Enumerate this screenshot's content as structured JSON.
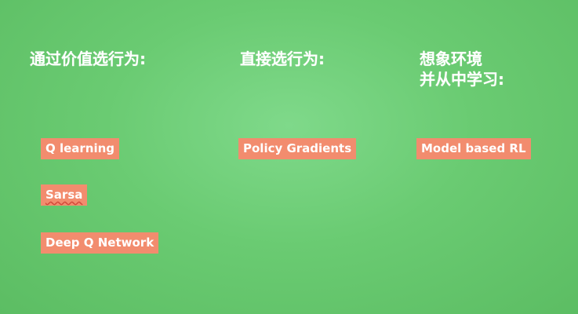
{
  "columns": [
    {
      "heading": "通过价值选行为:",
      "items": [
        "Q learning",
        "Sarsa",
        "Deep Q Network"
      ]
    },
    {
      "heading": "直接选行为:",
      "items": [
        "Policy Gradients"
      ]
    },
    {
      "heading": "想象环境\n并从中学习:",
      "items": [
        "Model based RL"
      ]
    }
  ],
  "colors": {
    "background": "#6acb72",
    "tag_background": "#f28c6e",
    "text": "#ffffff"
  }
}
